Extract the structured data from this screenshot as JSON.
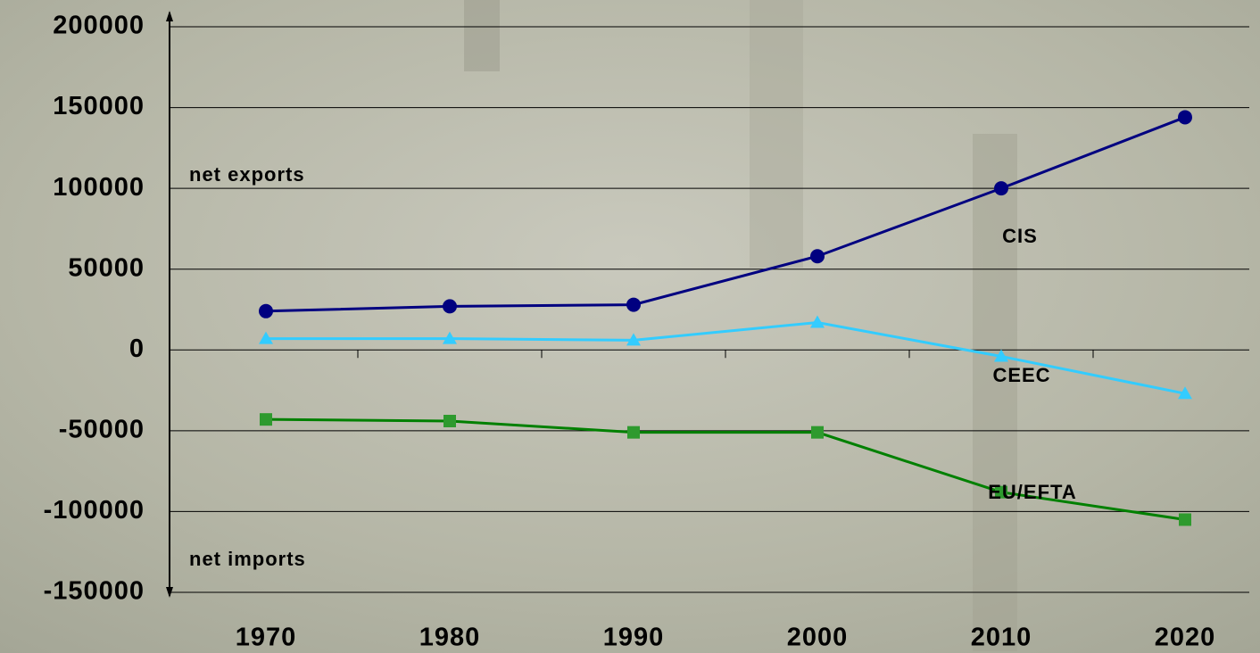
{
  "chart_data": {
    "type": "line",
    "categories": [
      "1970",
      "1980",
      "1990",
      "2000",
      "2010",
      "2020"
    ],
    "series": [
      {
        "name": "CIS",
        "color": "#000080",
        "marker": "circle",
        "values": [
          24000,
          27000,
          28000,
          58000,
          100000,
          144000
        ]
      },
      {
        "name": "CEEC",
        "color": "#33ccff",
        "marker": "triangle",
        "values": [
          7000,
          7000,
          6000,
          17000,
          -4000,
          -27000
        ]
      },
      {
        "name": "EU/EFTA",
        "color": "#008000",
        "marker": "square",
        "values": [
          -43000,
          -44000,
          -51000,
          -51000,
          -88000,
          -105000
        ]
      }
    ],
    "annotations": [
      "net exports",
      "net imports"
    ],
    "ylim": [
      -150000,
      200000
    ],
    "yticks": [
      -150000,
      -100000,
      -50000,
      0,
      50000,
      100000,
      150000,
      200000
    ],
    "grid": true
  }
}
